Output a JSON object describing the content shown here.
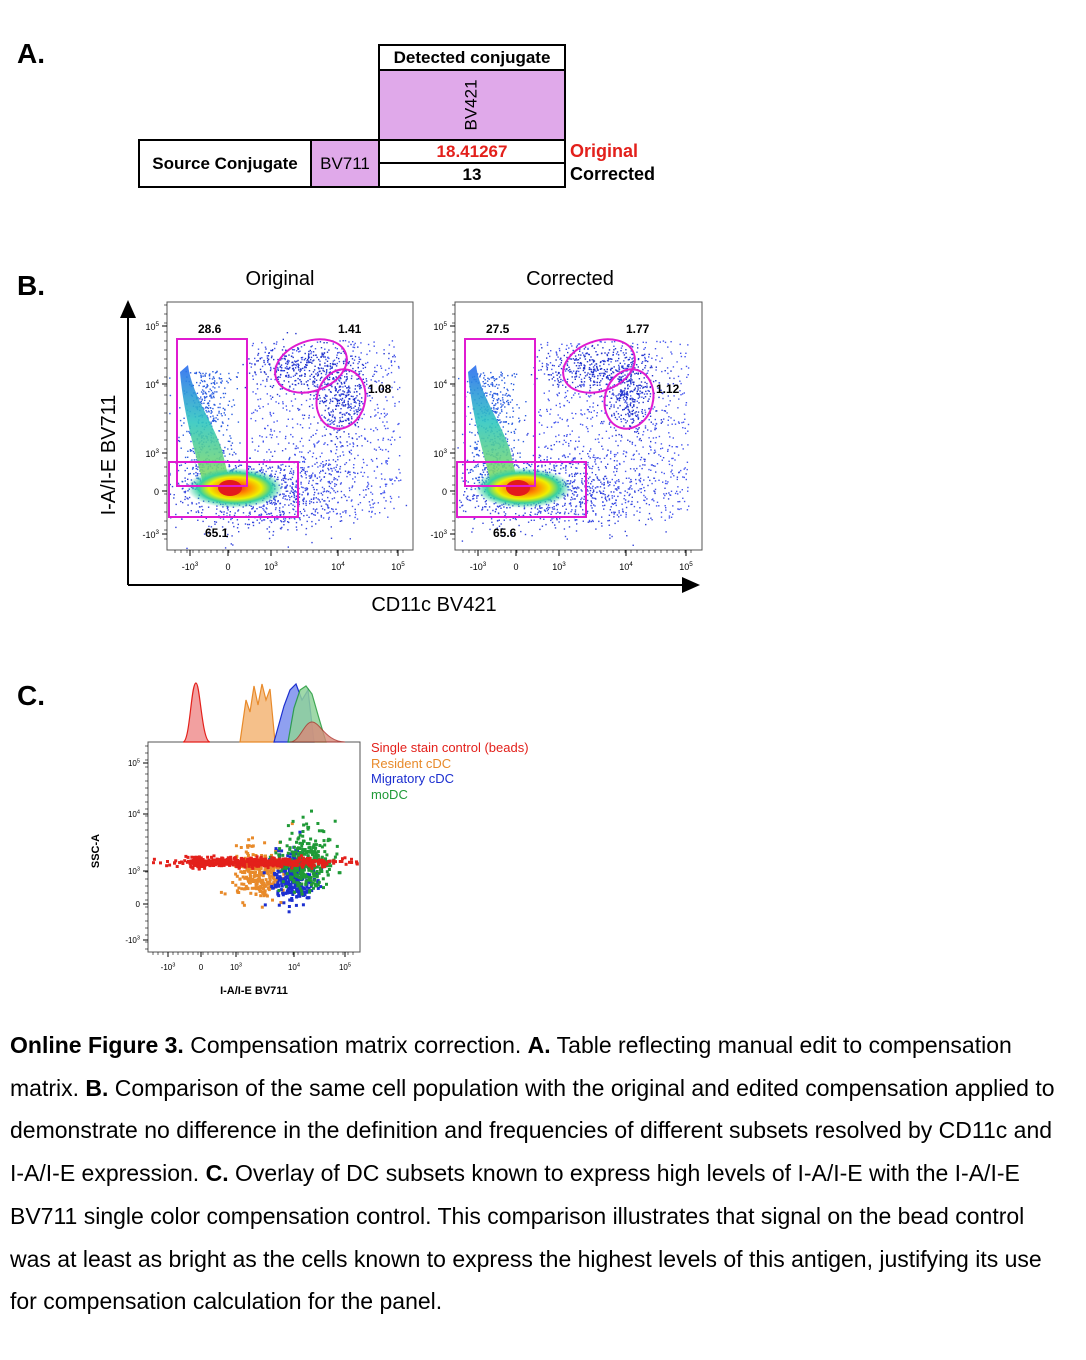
{
  "panels": {
    "a": "A.",
    "b": "B.",
    "c": "C."
  },
  "table": {
    "detected_header": "Detected conjugate",
    "detected_conjugate": "BV421",
    "source_header": "Source Conjugate",
    "source_conjugate": "BV711",
    "original_value": "18.41267",
    "corrected_value": "13",
    "original_label": "Original",
    "corrected_label": "Corrected",
    "colors": {
      "cell_fill": "#e0a9ea",
      "original": "#e3201b"
    }
  },
  "panel_b": {
    "titles": [
      "Original",
      "Corrected"
    ],
    "y_axis_label": "I-A/I-E BV711",
    "x_axis_label": "CD11c BV421",
    "y_ticks": [
      "10",
      "10",
      "10",
      "0",
      "-10"
    ],
    "y_tick_exps": [
      "5",
      "4",
      "3",
      "",
      "3"
    ],
    "x_ticks": [
      "-10",
      "0",
      "10",
      "10",
      "10"
    ],
    "x_tick_exps": [
      "3",
      "",
      "3",
      "4",
      "5"
    ],
    "plots": [
      {
        "gates": [
          "28.6",
          "1.41",
          "1.08",
          "65.1"
        ]
      },
      {
        "gates": [
          "27.5",
          "1.77",
          "1.12",
          "65.6"
        ]
      }
    ],
    "gate_color": "#e01bd0"
  },
  "panel_c": {
    "y_axis_label": "SSC-A",
    "x_axis_label": "I-A/I-E BV711",
    "y_ticks": [
      "10",
      "10",
      "10",
      "0",
      "-10"
    ],
    "y_tick_exps": [
      "5",
      "4",
      "3",
      "",
      "3"
    ],
    "x_ticks": [
      "-10",
      "0",
      "10",
      "10",
      "10"
    ],
    "x_tick_exps": [
      "3",
      "",
      "3",
      "4",
      "5"
    ],
    "legend": [
      {
        "label": "Single stain control (beads)",
        "color": "#e3201b"
      },
      {
        "label": "Resident cDC",
        "color": "#e88a2a"
      },
      {
        "label": "Migratory cDC",
        "color": "#1c2fd0"
      },
      {
        "label": "moDC",
        "color": "#1f9a37"
      }
    ]
  },
  "caption": {
    "figure": "Online Figure 3.",
    "intro": " Compensation matrix correction. ",
    "a_label": "A.",
    "a_text": " Table reflecting manual edit to compensation matrix. ",
    "b_label": "B.",
    "b_text": " Comparison of the same cell population with the original and edited compensation applied to demonstrate no difference in the definition and frequencies of different subsets resolved by CD11c and I-A/I-E expression. ",
    "c_label": "C.",
    "c_text": " Overlay of DC subsets known to express high levels of I-A/I-E with the I-A/I-E BV711 single color compensation control. This comparison illustrates that signal on the bead control was at least as bright as the cells known to express the highest levels of this antigen, justifying its use for compensation calculation for the panel."
  }
}
